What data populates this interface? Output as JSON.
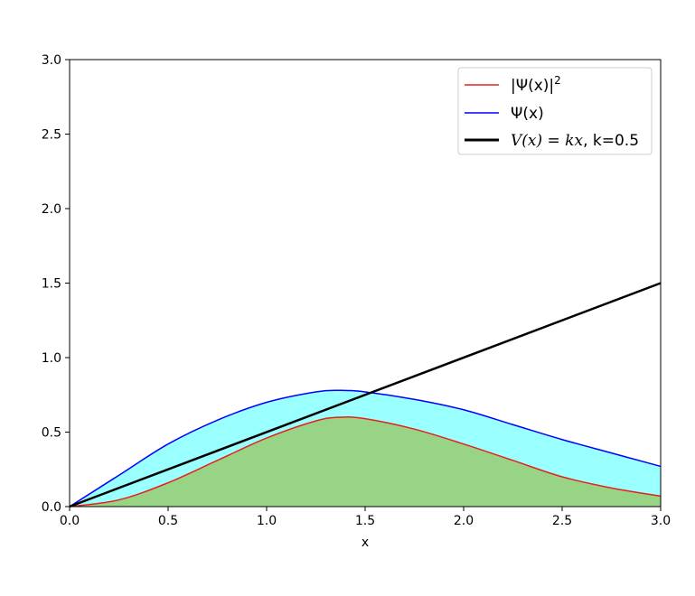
{
  "chart_data": {
    "type": "line",
    "xlabel": "x",
    "ylabel": "",
    "title": "",
    "xlim": [
      0.0,
      3.0
    ],
    "ylim": [
      0.0,
      3.0
    ],
    "xticks": [
      "0.0",
      "0.5",
      "1.0",
      "1.5",
      "2.0",
      "2.5",
      "3.0"
    ],
    "yticks": [
      "0.0",
      "0.5",
      "1.0",
      "1.5",
      "2.0",
      "2.5",
      "3.0"
    ],
    "grid": false,
    "legend_position": "top-right",
    "x": [
      0.0,
      0.25,
      0.5,
      0.75,
      1.0,
      1.25,
      1.375,
      1.5,
      1.75,
      2.0,
      2.25,
      2.5,
      2.75,
      3.0
    ],
    "series": [
      {
        "name": "|Ψ(x)|²",
        "color": "#e8201c",
        "fill_color": "#98d486",
        "values": [
          0.0,
          0.045,
          0.16,
          0.31,
          0.46,
          0.575,
          0.6,
          0.59,
          0.52,
          0.42,
          0.31,
          0.2,
          0.125,
          0.07
        ]
      },
      {
        "name": "Ψ(x)",
        "color": "#0000ff",
        "fill_color": "#99ffff",
        "values": [
          0.0,
          0.21,
          0.42,
          0.58,
          0.7,
          0.77,
          0.78,
          0.77,
          0.72,
          0.65,
          0.55,
          0.45,
          0.36,
          0.27
        ]
      },
      {
        "name": "V(x) = kx, k=0.5",
        "color": "#000000",
        "k": 0.5,
        "values": [
          0.0,
          0.125,
          0.25,
          0.375,
          0.5,
          0.625,
          0.6875,
          0.75,
          0.875,
          1.0,
          1.125,
          1.25,
          1.375,
          1.5
        ]
      }
    ],
    "legend": {
      "psi_sq_label": "|Ψ(x)|",
      "psi_sq_exp": "2",
      "psi_label": "Ψ(x)",
      "v_label_math": "V(x) = kx",
      "v_label_rest": ", k=0.5"
    }
  }
}
